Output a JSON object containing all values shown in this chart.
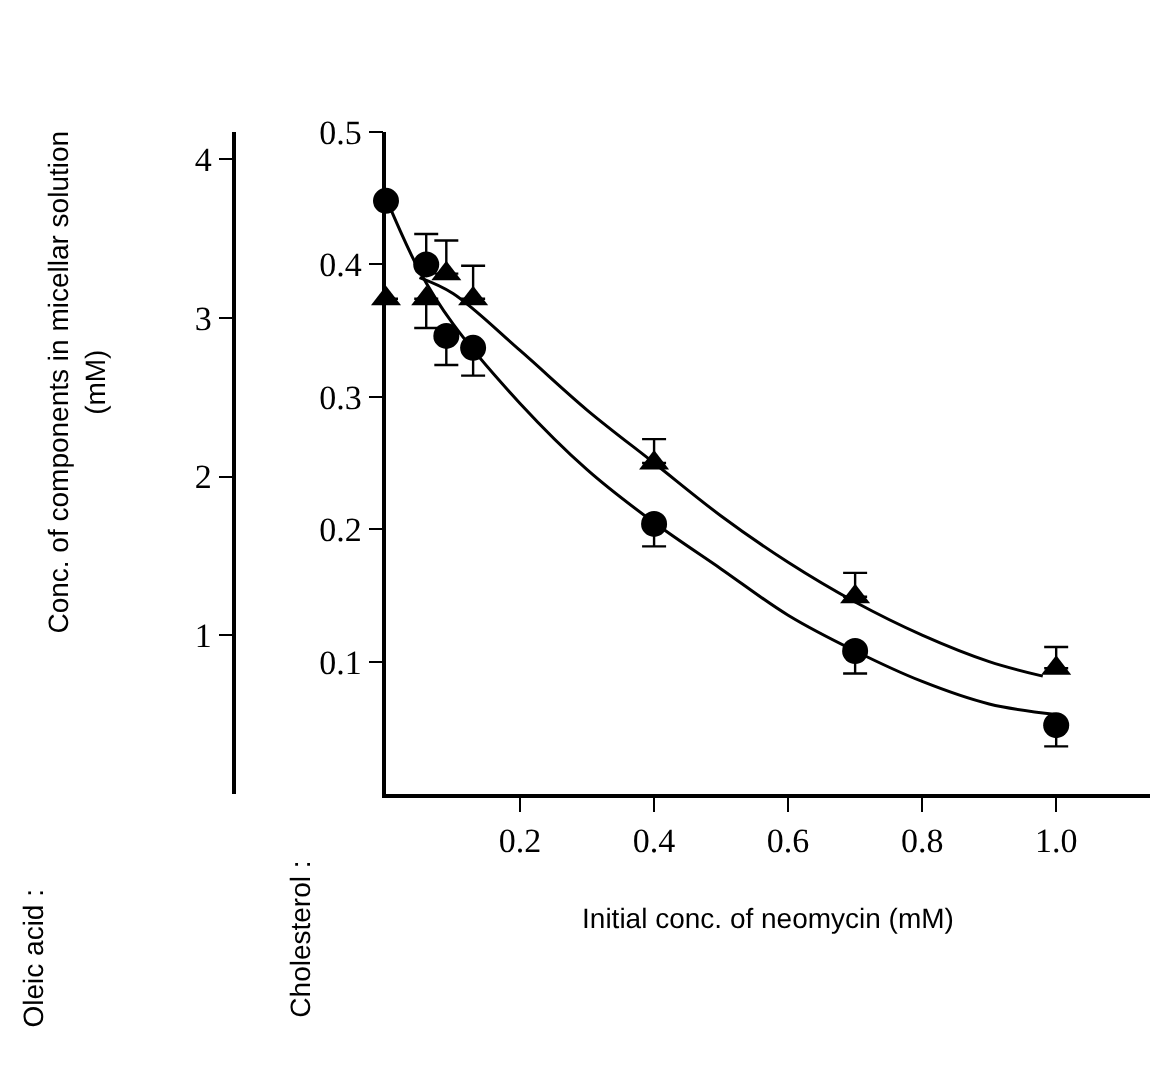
{
  "chart_data": {
    "type": "scatter",
    "xlabel": "Initial conc. of neomycin (mM)",
    "y2label": "Conc. of components in micellar solution\n(mM)",
    "annotations": [
      "Oleic acid :",
      "Cholesterol :"
    ],
    "series": [
      {
        "marker": "circle",
        "color": "#000000",
        "x": [
          0,
          0.06,
          0.09,
          0.13,
          0.4,
          0.7,
          1.0
        ],
        "values": [
          0.448,
          0.4,
          0.346,
          0.337,
          0.204,
          0.108,
          0.052
        ],
        "errors": [
          null,
          [
            0.4,
            0.423
          ],
          [
            0.324,
            0.346
          ],
          [
            0.316,
            0.337
          ],
          [
            0.187,
            0.204
          ],
          [
            0.091,
            0.108
          ],
          [
            0.036,
            0.052
          ]
        ]
      },
      {
        "marker": "triangle",
        "color": "#000000",
        "x": [
          0,
          0.06,
          0.09,
          0.13,
          0.4,
          0.7,
          1.0
        ],
        "values": [
          0.374,
          0.374,
          0.393,
          0.374,
          0.25,
          0.149,
          0.095
        ],
        "errors": [
          null,
          [
            0.352,
            0.374
          ],
          [
            0.393,
            0.418
          ],
          [
            0.374,
            0.399
          ],
          [
            0.25,
            0.268
          ],
          [
            0.149,
            0.167
          ],
          [
            0.095,
            0.111
          ]
        ]
      },
      {
        "type": "line",
        "color": "#000000",
        "x": [
          0,
          0.05,
          0.1,
          0.2,
          0.3,
          0.4,
          0.5,
          0.6,
          0.7,
          0.8,
          0.9,
          1.0
        ],
        "values": [
          0.45,
          0.395,
          0.355,
          0.295,
          0.245,
          0.205,
          0.17,
          0.135,
          0.108,
          0.085,
          0.068,
          0.06
        ]
      },
      {
        "type": "line",
        "color": "#000000",
        "x": [
          0.05,
          0.1,
          0.2,
          0.3,
          0.4,
          0.5,
          0.6,
          0.7,
          0.8,
          0.9,
          0.98
        ],
        "values": [
          0.39,
          0.378,
          0.335,
          0.29,
          0.25,
          0.21,
          0.175,
          0.145,
          0.12,
          0.1,
          0.089
        ]
      }
    ],
    "xlim": [
      0,
      1.14
    ],
    "xticks": [
      0.2,
      0.4,
      0.6,
      0.8,
      {
        "value": 1.0,
        "label": "1.0"
      }
    ],
    "ylim": [
      0,
      0.5
    ],
    "yticks": [
      0.1,
      0.2,
      0.3,
      0.4,
      0.5
    ],
    "y2lim": [
      0,
      4.17
    ],
    "y2ticks": [
      1,
      2,
      3,
      4
    ],
    "grid": false
  }
}
